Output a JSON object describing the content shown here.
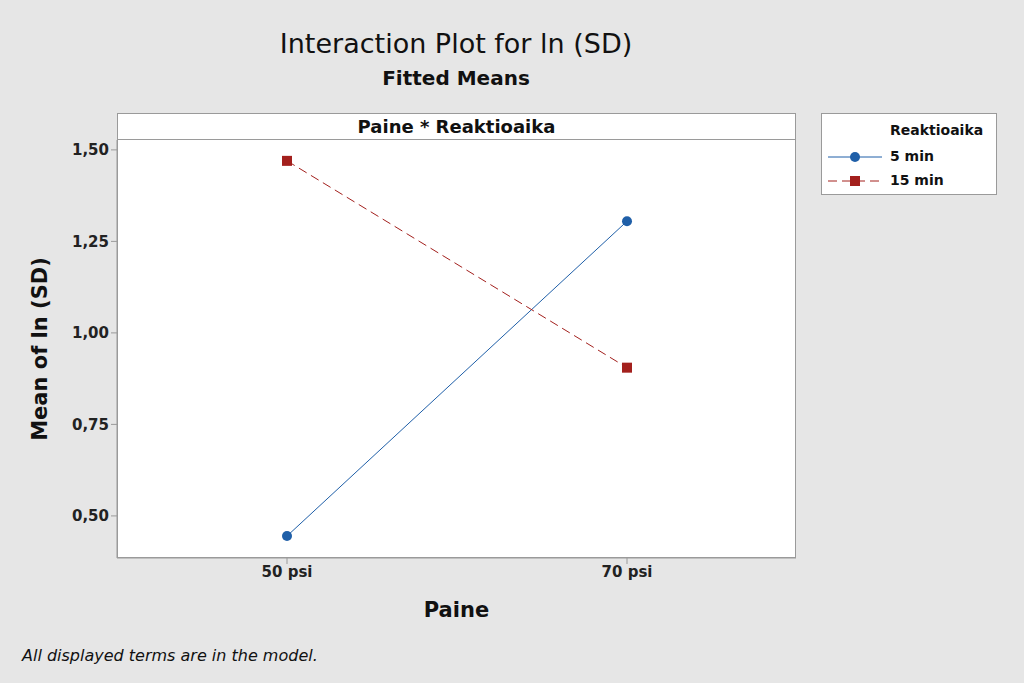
{
  "chart_data": {
    "type": "line",
    "title": "Interaction Plot for ln (SD)",
    "subtitle": "Fitted Means",
    "panel_title": "Paine * Reaktioaika",
    "x_label": "Paine",
    "y_label": "Mean of ln (SD)",
    "legend_title": "Reaktioaika",
    "footnote": "All displayed terms are in the model.",
    "categories": [
      "50 psi",
      "70 psi"
    ],
    "series": [
      {
        "name": "5 min",
        "color": "#1f5fa8",
        "marker": "circle",
        "line_style": "solid",
        "values": [
          0.445,
          1.305
        ]
      },
      {
        "name": "15 min",
        "color": "#a3201d",
        "marker": "square",
        "line_style": "dashed",
        "values": [
          1.47,
          0.905
        ]
      }
    ],
    "ylim": [
      0.385,
      1.527
    ],
    "yticks": [
      {
        "value": 0.5,
        "label": "0,50"
      },
      {
        "value": 0.75,
        "label": "0,75"
      },
      {
        "value": 1.0,
        "label": "1,00"
      },
      {
        "value": 1.25,
        "label": "1,25"
      },
      {
        "value": 1.5,
        "label": "1,50"
      }
    ],
    "legend": "right",
    "grid": false
  }
}
